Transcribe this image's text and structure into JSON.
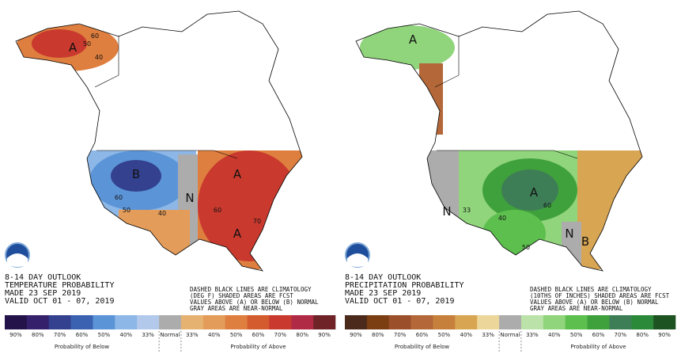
{
  "panels": [
    {
      "title_lines": [
        "8-14 DAY OUTLOOK",
        "TEMPERATURE PROBABILITY",
        "MADE 23 SEP 2019",
        "VALID OCT 01 - 07, 2019"
      ],
      "note_lines": [
        "DASHED BLACK LINES ARE CLIMATOLOGY",
        "(DEG F) SHADED AREAS ARE FCST",
        "VALUES ABOVE (A) OR BELOW (B) NORMAL",
        "GRAY AREAS ARE NEAR-NORMAL"
      ],
      "map_labels": [
        "A",
        "60",
        "50",
        "40",
        "B",
        "N",
        "A",
        "A",
        "60",
        "50",
        "40",
        "70",
        "60"
      ],
      "legend": {
        "below": [
          {
            "label": "90%",
            "color": "#24124a"
          },
          {
            "label": "80%",
            "color": "#35206c"
          },
          {
            "label": "70%",
            "color": "#33418f"
          },
          {
            "label": "60%",
            "color": "#3a62b0"
          },
          {
            "label": "50%",
            "color": "#5b95d8"
          },
          {
            "label": "40%",
            "color": "#8db7e6"
          },
          {
            "label": "33%",
            "color": "#b3c9ec"
          }
        ],
        "normal": {
          "label": "Normal",
          "color": "#acacac"
        },
        "above": [
          {
            "label": "33%",
            "color": "#e6b271"
          },
          {
            "label": "40%",
            "color": "#e49c5a"
          },
          {
            "label": "50%",
            "color": "#de7e3f"
          },
          {
            "label": "60%",
            "color": "#d45b2d"
          },
          {
            "label": "70%",
            "color": "#c9392e"
          },
          {
            "label": "80%",
            "color": "#b12a45"
          },
          {
            "label": "90%",
            "color": "#6f2327"
          }
        ],
        "below_caption": "Probability of Below",
        "above_caption": "Probability of Above"
      }
    },
    {
      "title_lines": [
        "8-14 DAY OUTLOOK",
        "PRECIPITATION PROBABILITY",
        "MADE 23 SEP 2019",
        "VALID OCT 01 - 07, 2019"
      ],
      "note_lines": [
        "DASHED BLACK LINES ARE CLIMATOLOGY",
        "(10THS OF INCHES) SHADED AREAS ARE FCST",
        "VALUES ABOVE (A) OR BELOW (B) NORMAL",
        "GRAY AREAS ARE NEAR-NORMAL"
      ],
      "map_labels": [
        "A",
        "N",
        "A",
        "33",
        "40",
        "50",
        "60",
        "N",
        "B"
      ],
      "legend": {
        "below": [
          {
            "label": "90%",
            "color": "#4b2a1c"
          },
          {
            "label": "80%",
            "color": "#7b3d12"
          },
          {
            "label": "70%",
            "color": "#9c4f2b"
          },
          {
            "label": "60%",
            "color": "#b46839"
          },
          {
            "label": "50%",
            "color": "#c7803c"
          },
          {
            "label": "40%",
            "color": "#d8a553"
          },
          {
            "label": "33%",
            "color": "#ecd699"
          }
        ],
        "normal": {
          "label": "Normal",
          "color": "#acacac"
        },
        "above": [
          {
            "label": "33%",
            "color": "#bbe3a9"
          },
          {
            "label": "40%",
            "color": "#90d47b"
          },
          {
            "label": "50%",
            "color": "#5dbf4e"
          },
          {
            "label": "60%",
            "color": "#3fa13c"
          },
          {
            "label": "70%",
            "color": "#3e7e57"
          },
          {
            "label": "80%",
            "color": "#2b8a3a"
          },
          {
            "label": "90%",
            "color": "#1d5221"
          }
        ],
        "below_caption": "Probability of Below",
        "above_caption": "Probability of Above"
      }
    }
  ]
}
